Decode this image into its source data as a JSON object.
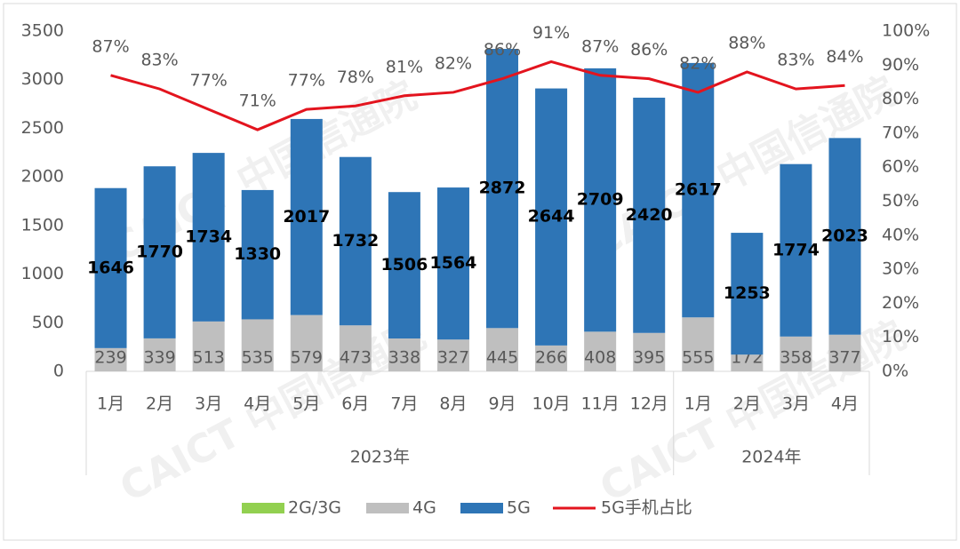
{
  "chart_data": {
    "type": "bar_line",
    "categories": [
      "1月",
      "2月",
      "3月",
      "4月",
      "5月",
      "6月",
      "7月",
      "8月",
      "9月",
      "10月",
      "11月",
      "12月",
      "1月",
      "2月",
      "3月",
      "4月"
    ],
    "x_groups": [
      {
        "label": "2023年",
        "count": 12
      },
      {
        "label": "2024年",
        "count": 4
      }
    ],
    "series": [
      {
        "name": "2G/3G",
        "type": "bar",
        "color": "#92d050",
        "values": [
          0,
          0,
          0,
          0,
          0,
          0,
          0,
          0,
          0,
          0,
          0,
          0,
          0,
          0,
          0,
          0
        ]
      },
      {
        "name": "4G",
        "type": "bar",
        "color": "#bfbfbf",
        "values": [
          239,
          339,
          513,
          535,
          579,
          473,
          338,
          327,
          445,
          266,
          408,
          395,
          555,
          172,
          358,
          377
        ]
      },
      {
        "name": "5G",
        "type": "bar",
        "color": "#2e75b6",
        "values": [
          1646,
          1770,
          1734,
          1330,
          2017,
          1732,
          1506,
          1564,
          2872,
          2644,
          2709,
          2420,
          2617,
          1253,
          1774,
          2023
        ]
      },
      {
        "name": "5G手机占比",
        "type": "line",
        "axis": "y2",
        "color": "#e3141e",
        "values": [
          87,
          83,
          77,
          71,
          77,
          78,
          81,
          82,
          86,
          91,
          87,
          86,
          82,
          88,
          83,
          84
        ],
        "value_labels": [
          "87%",
          "83%",
          "77%",
          "71%",
          "77%",
          "78%",
          "81%",
          "82%",
          "86%",
          "91%",
          "87%",
          "86%",
          "82%",
          "88%",
          "83%",
          "84%"
        ]
      }
    ],
    "ylim": [
      0,
      3500
    ],
    "yticks": [
      0,
      500,
      1000,
      1500,
      2000,
      2500,
      3000,
      3500
    ],
    "y2lim": [
      0,
      100
    ],
    "y2ticks": [
      {
        "value": 0,
        "label": "0%"
      },
      {
        "value": 10,
        "label": "10%"
      },
      {
        "value": 20,
        "label": "20%"
      },
      {
        "value": 30,
        "label": "30%"
      },
      {
        "value": 40,
        "label": "40%"
      },
      {
        "value": 50,
        "label": "50%"
      },
      {
        "value": 60,
        "label": "60%"
      },
      {
        "value": 70,
        "label": "70%"
      },
      {
        "value": 80,
        "label": "80%"
      },
      {
        "value": 90,
        "label": "90%"
      },
      {
        "value": 100,
        "label": "100%"
      }
    ],
    "grid": false,
    "watermark": "CAICT 中国信通院"
  }
}
